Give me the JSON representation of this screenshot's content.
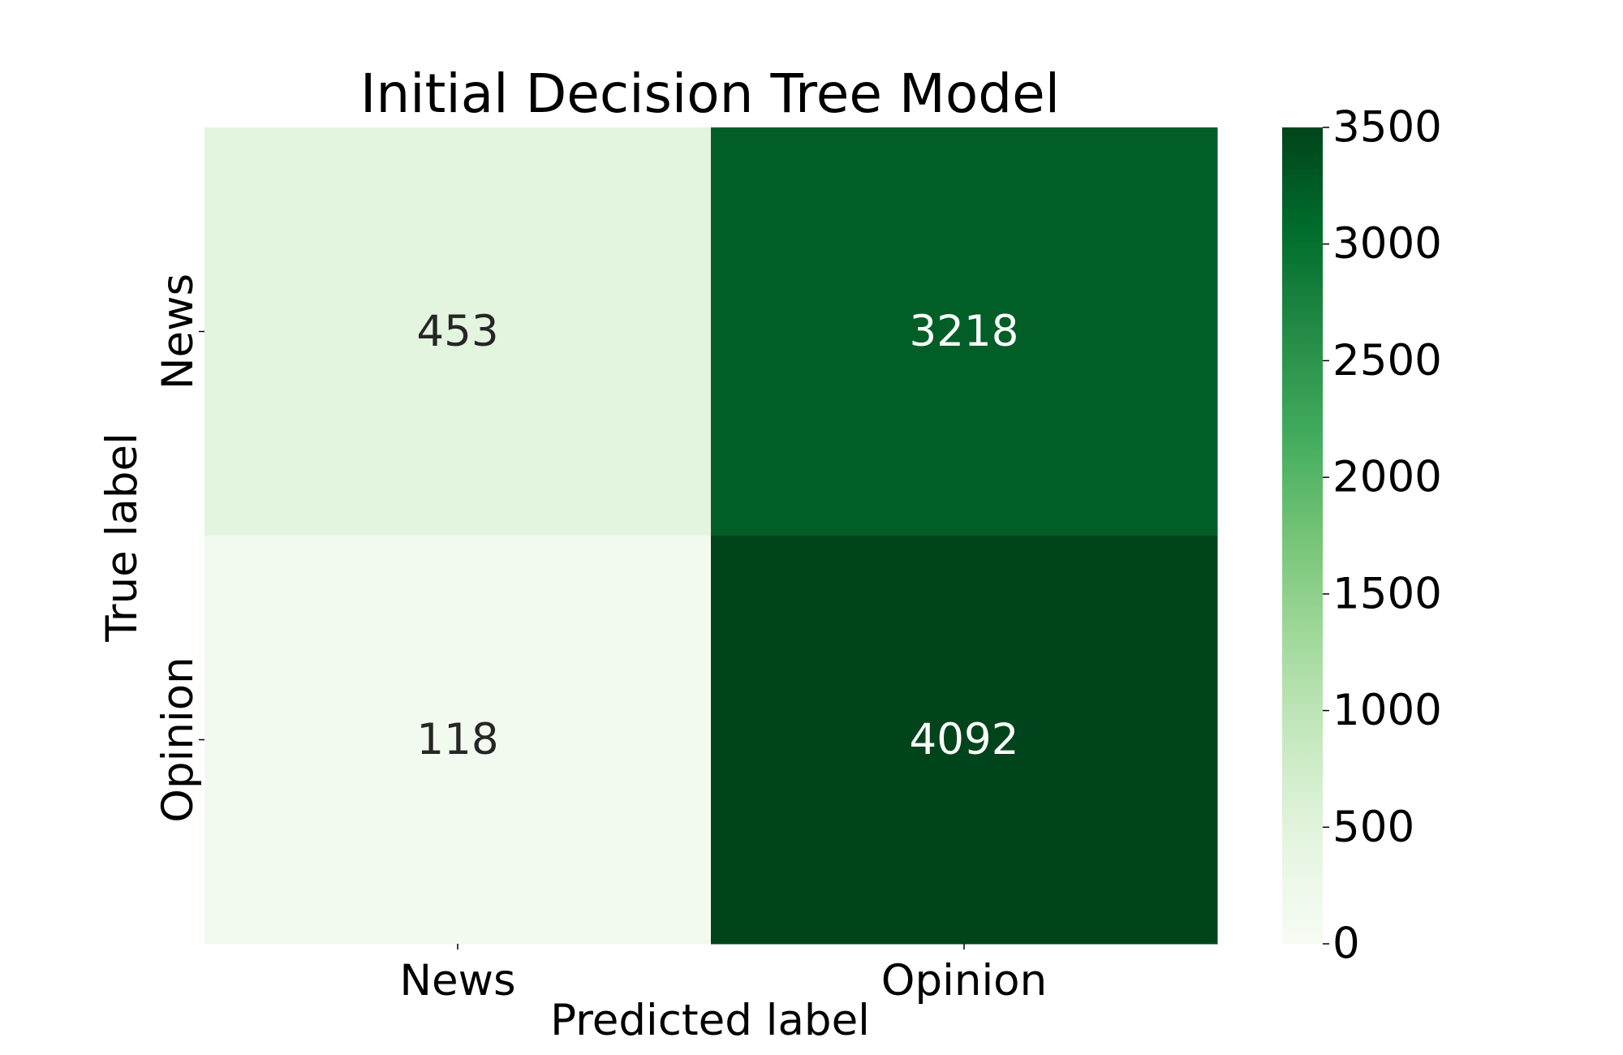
{
  "chart_data": {
    "type": "heatmap",
    "title": "Initial Decision Tree Model",
    "xlabel": "Predicted label",
    "ylabel": "True label",
    "x_categories": [
      "News",
      "Opinion"
    ],
    "y_categories": [
      "News",
      "Opinion"
    ],
    "values": [
      [
        453,
        3218
      ],
      [
        118,
        4092
      ]
    ],
    "colorbar": {
      "colormap": "Greens",
      "range": [
        0,
        3500
      ],
      "ticks": [
        0,
        500,
        1000,
        1500,
        2000,
        2500,
        3000,
        3500
      ]
    },
    "colors": {
      "light_text": "#ffffff",
      "dark_text": "#262626"
    }
  }
}
